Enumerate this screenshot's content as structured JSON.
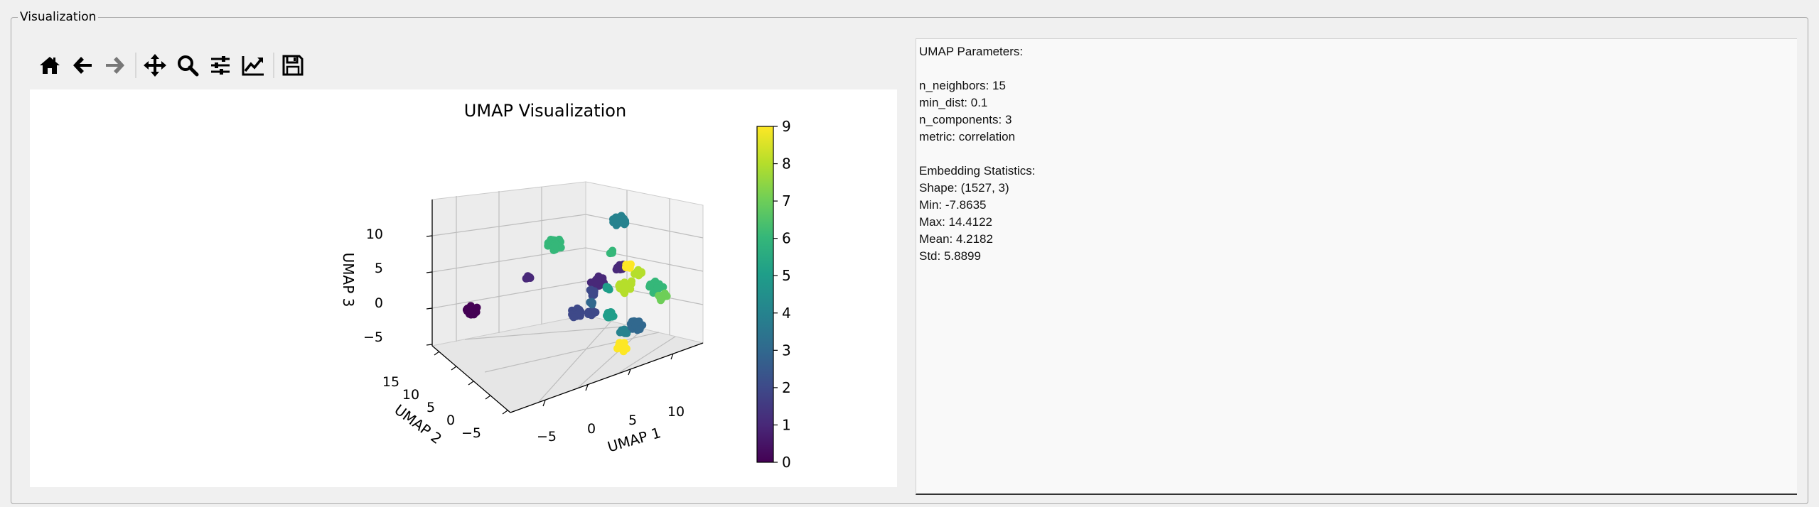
{
  "group": {
    "title": "Visualization"
  },
  "toolbar": {
    "buttons": [
      {
        "icon": "home-icon",
        "name": "home-button"
      },
      {
        "icon": "back-arrow-icon",
        "name": "back-button"
      },
      {
        "icon": "forward-arrow-icon",
        "name": "forward-button"
      },
      {
        "icon": "pan-icon",
        "name": "pan-button"
      },
      {
        "icon": "zoom-icon",
        "name": "zoom-button"
      },
      {
        "icon": "subplots-config-icon",
        "name": "configure-subplots-button"
      },
      {
        "icon": "edit-axis-icon",
        "name": "edit-axis-button"
      },
      {
        "icon": "save-icon",
        "name": "save-figure-button"
      }
    ]
  },
  "chart_data": {
    "type": "scatter",
    "projection": "3d",
    "title": "UMAP Visualization",
    "xlabel": "UMAP 1",
    "ylabel": "UMAP 2",
    "zlabel": "UMAP 3",
    "xticks": [
      "−5",
      "0",
      "5",
      "10"
    ],
    "yticks": [
      "15",
      "10",
      "5",
      "0",
      "−5"
    ],
    "zticks": [
      "10",
      "5",
      "0",
      "−5"
    ],
    "colorbar": {
      "ticks": [
        "9",
        "8",
        "7",
        "6",
        "5",
        "4",
        "3",
        "2",
        "1",
        "0"
      ],
      "range": [
        0,
        9
      ],
      "colormap": "viridis"
    },
    "clusters": [
      {
        "label": 0,
        "color": "#440154"
      },
      {
        "label": 1,
        "color": "#482878"
      },
      {
        "label": 2,
        "color": "#3e4989"
      },
      {
        "label": 3,
        "color": "#31688e"
      },
      {
        "label": 4,
        "color": "#26828e"
      },
      {
        "label": 5,
        "color": "#1f9e89"
      },
      {
        "label": 6,
        "color": "#35b779"
      },
      {
        "label": 7,
        "color": "#6ece58"
      },
      {
        "label": 8,
        "color": "#b5de2b"
      },
      {
        "label": 9,
        "color": "#fde725"
      }
    ]
  },
  "info": {
    "lines": [
      "UMAP Parameters:",
      "",
      "n_neighbors: 15",
      "min_dist: 0.1",
      "n_components: 3",
      "metric: correlation",
      "",
      "Embedding Statistics:",
      "Shape: (1527, 3)",
      "Min: -7.8635",
      "Max: 14.4122",
      "Mean: 4.2182",
      "Std: 5.8899"
    ]
  }
}
